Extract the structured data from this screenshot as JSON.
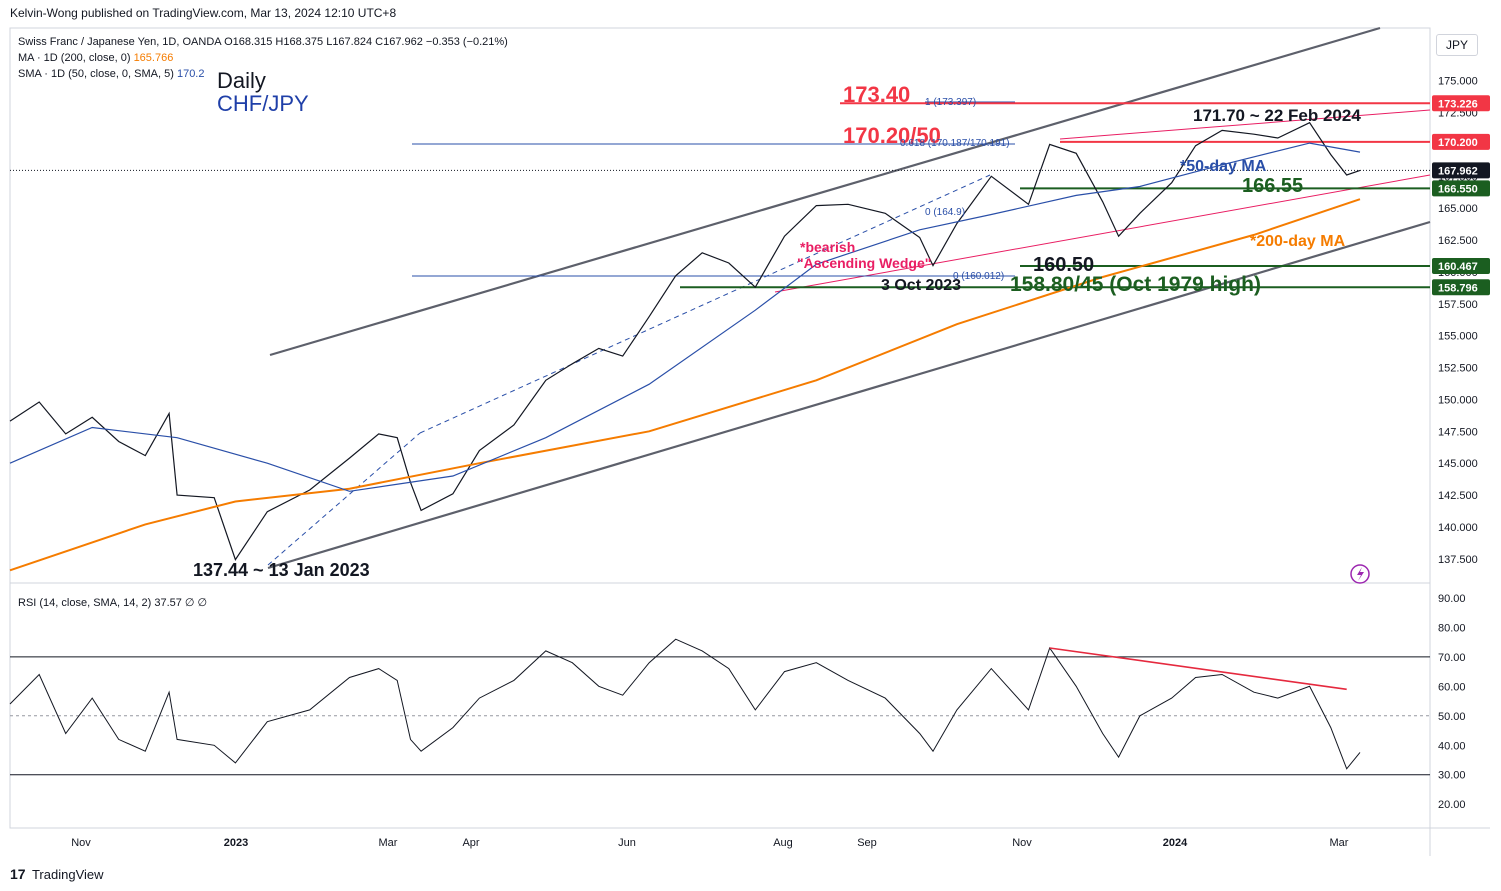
{
  "header": {
    "credit": "Kelvin-Wong published on TradingView.com, Mar 13, 2024 12:10 UTC+8",
    "instrument_line_prefix": "Swiss Franc / Japanese Yen, 1D, OANDA",
    "ohlc": "O168.315  H168.375  L167.824  C167.962  −0.353 (−0.21%)",
    "ma200_label": "MA · 1D (200, close, 0)",
    "ma200_value": "165.766",
    "sma50_label": "SMA · 1D (50, close, 0, SMA, 5)",
    "sma50_value": "170.2",
    "title_daily": "Daily",
    "title_pair": "CHF/JPY",
    "currency": "JPY"
  },
  "rsi_header": "RSI (14, close, SMA, 14, 2)  37.57  ∅  ∅",
  "footer": {
    "brand": "TradingView",
    "logo": "17"
  },
  "colors": {
    "price": "#131722",
    "ma200": "#f57c00",
    "sma50": "#2a4fa8",
    "channel": "#5d606b",
    "wedge": "#e91e63",
    "support": "#1b5e20",
    "resistance": "#f23645",
    "rsi": "#131722",
    "rsi_trend": "#e5293e"
  },
  "chart_data": [
    {
      "type": "line",
      "name": "price",
      "x_axis_ticks": [
        "Nov",
        "2023",
        "Mar",
        "Apr",
        "Jun",
        "Aug",
        "Sep",
        "Nov",
        "2024",
        "Mar"
      ],
      "y_axis_ticks": [
        "175.000",
        "172.500",
        "170.000",
        "167.500",
        "165.000",
        "162.500",
        "160.000",
        "157.500",
        "155.000",
        "152.500",
        "150.000",
        "147.500",
        "145.000",
        "142.500",
        "140.000",
        "137.500"
      ],
      "ylim": [
        136.0,
        178.5
      ],
      "series": [
        {
          "name": "CHF/JPY close",
          "points": [
            [
              "2022-10-20",
              148.3
            ],
            [
              "2022-10-31",
              149.8
            ],
            [
              "2022-11-10",
              147.3
            ],
            [
              "2022-11-20",
              148.6
            ],
            [
              "2022-11-30",
              146.7
            ],
            [
              "2022-12-10",
              145.6
            ],
            [
              "2022-12-19",
              148.9
            ],
            [
              "2022-12-22",
              142.5
            ],
            [
              "2023-01-05",
              142.3
            ],
            [
              "2023-01-13",
              137.44
            ],
            [
              "2023-01-25",
              141.2
            ],
            [
              "2023-02-10",
              142.9
            ],
            [
              "2023-02-25",
              145.4
            ],
            [
              "2023-03-08",
              147.3
            ],
            [
              "2023-03-15",
              147.0
            ],
            [
              "2023-03-20",
              143.5
            ],
            [
              "2023-03-24",
              141.3
            ],
            [
              "2023-04-05",
              142.6
            ],
            [
              "2023-04-15",
              146.0
            ],
            [
              "2023-04-28",
              148.0
            ],
            [
              "2023-05-10",
              151.5
            ],
            [
              "2023-05-20",
              152.8
            ],
            [
              "2023-05-30",
              154.0
            ],
            [
              "2023-06-08",
              153.4
            ],
            [
              "2023-06-18",
              156.5
            ],
            [
              "2023-06-28",
              159.7
            ],
            [
              "2023-07-08",
              161.5
            ],
            [
              "2023-07-18",
              160.7
            ],
            [
              "2023-07-28",
              158.8
            ],
            [
              "2023-08-08",
              162.8
            ],
            [
              "2023-08-20",
              165.2
            ],
            [
              "2023-09-01",
              165.3
            ],
            [
              "2023-09-15",
              164.6
            ],
            [
              "2023-09-28",
              162.7
            ],
            [
              "2023-10-03",
              160.5
            ],
            [
              "2023-10-12",
              163.8
            ],
            [
              "2023-10-25",
              167.5
            ],
            [
              "2023-11-08",
              165.3
            ],
            [
              "2023-11-16",
              170.0
            ],
            [
              "2023-11-26",
              169.3
            ],
            [
              "2023-12-06",
              165.5
            ],
            [
              "2023-12-12",
              162.8
            ],
            [
              "2023-12-20",
              164.6
            ],
            [
              "2024-01-01",
              167.0
            ],
            [
              "2024-01-10",
              169.9
            ],
            [
              "2024-01-20",
              171.1
            ],
            [
              "2024-02-01",
              170.8
            ],
            [
              "2024-02-10",
              170.5
            ],
            [
              "2024-02-22",
              171.7
            ],
            [
              "2024-03-01",
              169.2
            ],
            [
              "2024-03-07",
              167.6
            ],
            [
              "2024-03-12",
              167.96
            ]
          ]
        },
        {
          "name": "200-day MA",
          "points": [
            [
              "2022-10-20",
              136.6
            ],
            [
              "2022-12-10",
              140.2
            ],
            [
              "2023-01-13",
              142.0
            ],
            [
              "2023-02-25",
              143.0
            ],
            [
              "2023-04-15",
              145.0
            ],
            [
              "2023-06-18",
              147.5
            ],
            [
              "2023-08-20",
              151.5
            ],
            [
              "2023-10-12",
              155.9
            ],
            [
              "2023-12-06",
              159.6
            ],
            [
              "2024-02-01",
              162.9
            ],
            [
              "2024-03-12",
              165.7
            ]
          ]
        },
        {
          "name": "50-day MA",
          "points": [
            [
              "2022-10-20",
              145.0
            ],
            [
              "2022-11-20",
              147.8
            ],
            [
              "2022-12-22",
              147.0
            ],
            [
              "2023-01-25",
              145.0
            ],
            [
              "2023-02-25",
              142.8
            ],
            [
              "2023-04-05",
              144.0
            ],
            [
              "2023-05-10",
              147.0
            ],
            [
              "2023-06-18",
              151.2
            ],
            [
              "2023-07-28",
              157.0
            ],
            [
              "2023-08-20",
              160.6
            ],
            [
              "2023-09-28",
              163.3
            ],
            [
              "2023-10-25",
              164.5
            ],
            [
              "2023-11-26",
              166.0
            ],
            [
              "2023-12-20",
              166.7
            ],
            [
              "2024-01-20",
              168.4
            ],
            [
              "2024-02-22",
              170.1
            ],
            [
              "2024-03-12",
              169.4
            ]
          ]
        }
      ],
      "price_tags": [
        {
          "label": "173.226",
          "value": 173.226,
          "color": "#f23645"
        },
        {
          "label": "170.200",
          "value": 170.2,
          "color": "#f23645"
        },
        {
          "label": "167.962",
          "value": 167.962,
          "color": "#131722"
        },
        {
          "label": "166.550",
          "value": 166.55,
          "color": "#1b5e20"
        },
        {
          "label": "160.467",
          "value": 160.467,
          "color": "#1b5e20"
        },
        {
          "label": "158.796",
          "value": 158.796,
          "color": "#1b5e20"
        }
      ],
      "annotations": [
        {
          "text": "173.40",
          "color": "#f23645"
        },
        {
          "text": "170.20/50",
          "color": "#f23645"
        },
        {
          "text": "171.70 ~ 22 Feb 2024",
          "color": "#131722"
        },
        {
          "text": "*50-day MA",
          "color": "#2a4fa8"
        },
        {
          "text": "166.55",
          "color": "#1b5e20"
        },
        {
          "text": "*200-day MA",
          "color": "#f57c00"
        },
        {
          "text": "160.50",
          "color": "#131722"
        },
        {
          "text": "3 Oct 2023",
          "color": "#131722"
        },
        {
          "text": "158.80/45 (Oct 1979 high)",
          "color": "#1b5e20"
        },
        {
          "text": "137.44 ~ 13 Jan 2023",
          "color": "#131722"
        },
        {
          "text": "*bearish",
          "color": "#e91e63"
        },
        {
          "text": "\"Ascending Wedge\"",
          "color": "#e91e63"
        }
      ],
      "fib_labels": [
        "1 (173.397)",
        "0.618 (170.187/170.191)",
        "0 (164.9)",
        "0 (160.012)"
      ]
    },
    {
      "type": "line",
      "name": "RSI",
      "y_axis_ticks": [
        "90.00",
        "80.00",
        "70.00",
        "60.00",
        "50.00",
        "40.00",
        "30.00",
        "20.00"
      ],
      "ylim": [
        16,
        92
      ],
      "levels": [
        70,
        50,
        30
      ],
      "series": [
        {
          "name": "RSI 14",
          "points": [
            [
              "2022-10-20",
              54
            ],
            [
              "2022-10-31",
              64
            ],
            [
              "2022-11-10",
              44
            ],
            [
              "2022-11-20",
              56
            ],
            [
              "2022-11-30",
              42
            ],
            [
              "2022-12-10",
              38
            ],
            [
              "2022-12-19",
              58
            ],
            [
              "2022-12-22",
              42
            ],
            [
              "2023-01-05",
              40
            ],
            [
              "2023-01-13",
              34
            ],
            [
              "2023-01-25",
              48
            ],
            [
              "2023-02-10",
              52
            ],
            [
              "2023-02-25",
              63
            ],
            [
              "2023-03-08",
              66
            ],
            [
              "2023-03-15",
              62
            ],
            [
              "2023-03-20",
              42
            ],
            [
              "2023-03-24",
              38
            ],
            [
              "2023-04-05",
              46
            ],
            [
              "2023-04-15",
              56
            ],
            [
              "2023-04-28",
              62
            ],
            [
              "2023-05-10",
              72
            ],
            [
              "2023-05-20",
              68
            ],
            [
              "2023-05-30",
              60
            ],
            [
              "2023-06-08",
              57
            ],
            [
              "2023-06-18",
              68
            ],
            [
              "2023-06-28",
              76
            ],
            [
              "2023-07-08",
              72
            ],
            [
              "2023-07-18",
              66
            ],
            [
              "2023-07-28",
              52
            ],
            [
              "2023-08-08",
              65
            ],
            [
              "2023-08-20",
              68
            ],
            [
              "2023-09-01",
              62
            ],
            [
              "2023-09-15",
              56
            ],
            [
              "2023-09-28",
              44
            ],
            [
              "2023-10-03",
              38
            ],
            [
              "2023-10-12",
              52
            ],
            [
              "2023-10-25",
              66
            ],
            [
              "2023-11-08",
              52
            ],
            [
              "2023-11-16",
              73
            ],
            [
              "2023-11-26",
              60
            ],
            [
              "2023-12-06",
              44
            ],
            [
              "2023-12-12",
              36
            ],
            [
              "2023-12-20",
              50
            ],
            [
              "2024-01-01",
              56
            ],
            [
              "2024-01-10",
              63
            ],
            [
              "2024-01-20",
              64
            ],
            [
              "2024-02-01",
              58
            ],
            [
              "2024-02-10",
              56
            ],
            [
              "2024-02-22",
              60
            ],
            [
              "2024-03-01",
              46
            ],
            [
              "2024-03-07",
              32
            ],
            [
              "2024-03-12",
              37.57
            ]
          ]
        },
        {
          "name": "RSI bearish divergence trendline",
          "points": [
            [
              "2023-11-16",
              73
            ],
            [
              "2024-03-07",
              59
            ]
          ]
        }
      ]
    }
  ]
}
